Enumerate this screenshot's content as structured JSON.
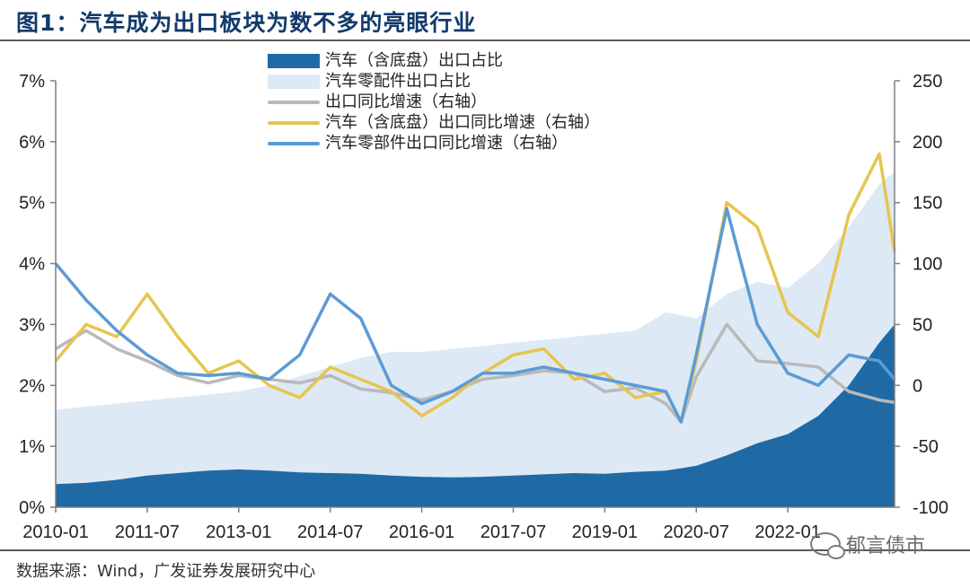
{
  "header": {
    "title": "图1：汽车成为出口板块为数不多的亮眼行业"
  },
  "footer": {
    "source": "数据来源：Wind，广发证券发展研究中心",
    "watermark": "郁言债市",
    "watermark_icon": "wechat-icon"
  },
  "chart_data": {
    "type": "area+line",
    "x_start": "2010-01",
    "x_end": "2023-10",
    "x_ticks": [
      "2010-01",
      "2011-07",
      "2013-01",
      "2014-07",
      "2016-01",
      "2017-07",
      "2019-01",
      "2020-07",
      "2022-01"
    ],
    "y_left": {
      "min": 0,
      "max": 7,
      "ticks": [
        "0%",
        "1%",
        "2%",
        "3%",
        "4%",
        "5%",
        "6%",
        "7%"
      ]
    },
    "y_right": {
      "min": -100,
      "max": 250,
      "ticks": [
        "-100",
        "-50",
        "0",
        "50",
        "100",
        "150",
        "200",
        "250"
      ]
    },
    "grid": false,
    "legend_position": "top-center",
    "series": [
      {
        "name": "汽车（含底盘）出口占比",
        "kind": "area",
        "axis": "left",
        "color": "#1f6aa5",
        "points": [
          [
            "2010-01",
            0.38
          ],
          [
            "2010-07",
            0.4
          ],
          [
            "2011-01",
            0.45
          ],
          [
            "2011-07",
            0.52
          ],
          [
            "2012-01",
            0.56
          ],
          [
            "2012-07",
            0.6
          ],
          [
            "2013-01",
            0.62
          ],
          [
            "2013-07",
            0.6
          ],
          [
            "2014-01",
            0.57
          ],
          [
            "2014-07",
            0.56
          ],
          [
            "2015-01",
            0.55
          ],
          [
            "2015-07",
            0.52
          ],
          [
            "2016-01",
            0.5
          ],
          [
            "2016-07",
            0.49
          ],
          [
            "2017-01",
            0.5
          ],
          [
            "2017-07",
            0.52
          ],
          [
            "2018-01",
            0.54
          ],
          [
            "2018-07",
            0.56
          ],
          [
            "2019-01",
            0.55
          ],
          [
            "2019-07",
            0.58
          ],
          [
            "2020-01",
            0.6
          ],
          [
            "2020-07",
            0.68
          ],
          [
            "2021-01",
            0.85
          ],
          [
            "2021-07",
            1.05
          ],
          [
            "2022-01",
            1.2
          ],
          [
            "2022-07",
            1.5
          ],
          [
            "2023-01",
            2.0
          ],
          [
            "2023-07",
            2.7
          ],
          [
            "2023-10",
            3.0
          ]
        ]
      },
      {
        "name": "汽车零配件出口占比",
        "kind": "area",
        "axis": "left",
        "color": "#dde9f5",
        "points": [
          [
            "2010-01",
            1.6
          ],
          [
            "2010-07",
            1.65
          ],
          [
            "2011-01",
            1.7
          ],
          [
            "2011-07",
            1.75
          ],
          [
            "2012-01",
            1.8
          ],
          [
            "2012-07",
            1.85
          ],
          [
            "2013-01",
            1.9
          ],
          [
            "2013-07",
            2.0
          ],
          [
            "2014-01",
            2.15
          ],
          [
            "2014-07",
            2.3
          ],
          [
            "2015-01",
            2.45
          ],
          [
            "2015-07",
            2.55
          ],
          [
            "2016-01",
            2.55
          ],
          [
            "2016-07",
            2.6
          ],
          [
            "2017-01",
            2.65
          ],
          [
            "2017-07",
            2.7
          ],
          [
            "2018-01",
            2.75
          ],
          [
            "2018-07",
            2.8
          ],
          [
            "2019-01",
            2.85
          ],
          [
            "2019-07",
            2.9
          ],
          [
            "2020-01",
            3.2
          ],
          [
            "2020-07",
            3.1
          ],
          [
            "2021-01",
            3.5
          ],
          [
            "2021-07",
            3.7
          ],
          [
            "2022-01",
            3.6
          ],
          [
            "2022-07",
            4.0
          ],
          [
            "2023-01",
            4.6
          ],
          [
            "2023-07",
            5.3
          ],
          [
            "2023-10",
            5.5
          ]
        ]
      },
      {
        "name": "出口同比增速（右轴）",
        "kind": "line",
        "axis": "right",
        "color": "#b9b9b9",
        "points": [
          [
            "2010-01",
            30
          ],
          [
            "2010-07",
            45
          ],
          [
            "2011-01",
            30
          ],
          [
            "2011-07",
            20
          ],
          [
            "2012-01",
            8
          ],
          [
            "2012-07",
            2
          ],
          [
            "2013-01",
            8
          ],
          [
            "2013-07",
            5
          ],
          [
            "2014-01",
            2
          ],
          [
            "2014-07",
            8
          ],
          [
            "2015-01",
            -3
          ],
          [
            "2015-07",
            -6
          ],
          [
            "2016-01",
            -12
          ],
          [
            "2016-07",
            -5
          ],
          [
            "2017-01",
            5
          ],
          [
            "2017-07",
            8
          ],
          [
            "2018-01",
            12
          ],
          [
            "2018-07",
            10
          ],
          [
            "2019-01",
            -5
          ],
          [
            "2019-07",
            -2
          ],
          [
            "2020-01",
            -15
          ],
          [
            "2020-04",
            -30
          ],
          [
            "2020-07",
            7
          ],
          [
            "2021-01",
            50
          ],
          [
            "2021-07",
            20
          ],
          [
            "2022-01",
            18
          ],
          [
            "2022-07",
            15
          ],
          [
            "2023-01",
            -5
          ],
          [
            "2023-07",
            -12
          ],
          [
            "2023-10",
            -14
          ]
        ]
      },
      {
        "name": "汽车（含底盘）出口同比增速（右轴）",
        "kind": "line",
        "axis": "right",
        "color": "#e6c54f",
        "points": [
          [
            "2010-01",
            20
          ],
          [
            "2010-07",
            50
          ],
          [
            "2011-01",
            40
          ],
          [
            "2011-07",
            75
          ],
          [
            "2012-01",
            40
          ],
          [
            "2012-07",
            10
          ],
          [
            "2013-01",
            20
          ],
          [
            "2013-07",
            0
          ],
          [
            "2014-01",
            -10
          ],
          [
            "2014-07",
            15
          ],
          [
            "2015-01",
            5
          ],
          [
            "2015-07",
            -5
          ],
          [
            "2016-01",
            -25
          ],
          [
            "2016-07",
            -10
          ],
          [
            "2017-01",
            10
          ],
          [
            "2017-07",
            25
          ],
          [
            "2018-01",
            30
          ],
          [
            "2018-07",
            5
          ],
          [
            "2019-01",
            10
          ],
          [
            "2019-07",
            -10
          ],
          [
            "2020-01",
            -5
          ],
          [
            "2020-04",
            -30
          ],
          [
            "2020-07",
            20
          ],
          [
            "2021-01",
            150
          ],
          [
            "2021-07",
            130
          ],
          [
            "2022-01",
            60
          ],
          [
            "2022-07",
            40
          ],
          [
            "2023-01",
            140
          ],
          [
            "2023-07",
            190
          ],
          [
            "2023-10",
            110
          ]
        ]
      },
      {
        "name": "汽车零部件出口同比增速（右轴）",
        "kind": "line",
        "axis": "right",
        "color": "#5b9bd5",
        "points": [
          [
            "2010-01",
            100
          ],
          [
            "2010-07",
            70
          ],
          [
            "2011-01",
            45
          ],
          [
            "2011-07",
            25
          ],
          [
            "2012-01",
            10
          ],
          [
            "2012-07",
            8
          ],
          [
            "2013-01",
            10
          ],
          [
            "2013-07",
            5
          ],
          [
            "2014-01",
            25
          ],
          [
            "2014-07",
            75
          ],
          [
            "2015-01",
            55
          ],
          [
            "2015-07",
            0
          ],
          [
            "2016-01",
            -15
          ],
          [
            "2016-07",
            -5
          ],
          [
            "2017-01",
            10
          ],
          [
            "2017-07",
            10
          ],
          [
            "2018-01",
            15
          ],
          [
            "2018-07",
            10
          ],
          [
            "2019-01",
            5
          ],
          [
            "2019-07",
            0
          ],
          [
            "2020-01",
            -5
          ],
          [
            "2020-04",
            -30
          ],
          [
            "2020-07",
            25
          ],
          [
            "2021-01",
            145
          ],
          [
            "2021-07",
            50
          ],
          [
            "2022-01",
            10
          ],
          [
            "2022-07",
            0
          ],
          [
            "2023-01",
            25
          ],
          [
            "2023-07",
            20
          ],
          [
            "2023-10",
            5
          ]
        ]
      }
    ]
  }
}
